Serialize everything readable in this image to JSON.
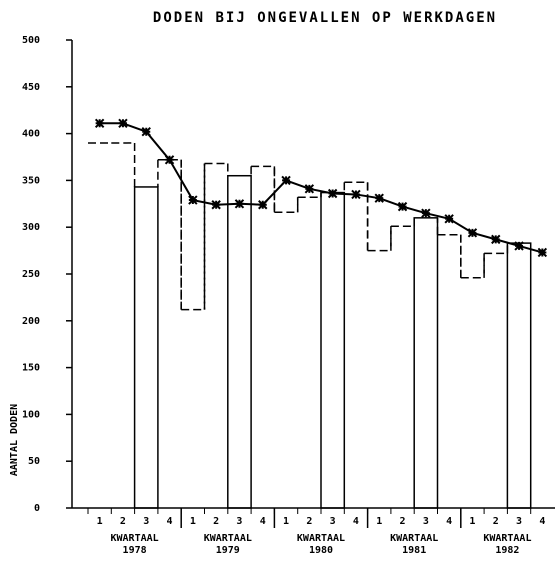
{
  "chart_data": {
    "type": "bar",
    "title": "DODEN BIJ ONGEVALLEN OP WERKDAGEN",
    "y_label": "AANTAL DODEN",
    "categories": [
      "1",
      "2",
      "3",
      "4",
      "1",
      "2",
      "3",
      "4",
      "1",
      "2",
      "3",
      "4",
      "1",
      "2",
      "3",
      "4",
      "1",
      "2",
      "3",
      "4"
    ],
    "groups": [
      {
        "label": "KWARTAAL",
        "year": "1978"
      },
      {
        "label": "KWARTAAL",
        "year": "1979"
      },
      {
        "label": "KWARTAAL",
        "year": "1980"
      },
      {
        "label": "KWARTAAL",
        "year": "1981"
      },
      {
        "label": "KWARTAAL",
        "year": "1982"
      }
    ],
    "series": [
      {
        "style": "line",
        "color": "#000",
        "values": [
          411,
          411,
          402,
          372,
          329,
          324,
          325,
          324,
          350,
          341,
          336,
          335,
          331,
          322,
          315,
          309,
          294,
          287,
          280,
          273
        ]
      },
      {
        "style": "dashed-step",
        "color": "#000",
        "values": [
          390,
          390,
          null,
          372,
          212,
          368,
          null,
          365,
          316,
          332,
          null,
          348,
          275,
          301,
          null,
          292,
          246,
          272,
          null,
          null
        ]
      },
      {
        "style": "bar",
        "color": "#000",
        "values": [
          null,
          null,
          343,
          null,
          null,
          null,
          355,
          null,
          null,
          null,
          337,
          null,
          null,
          null,
          310,
          null,
          null,
          null,
          283,
          null
        ]
      }
    ],
    "ylim": [
      0,
      500
    ],
    "yticks": [
      0,
      50,
      100,
      150,
      200,
      250,
      300,
      350,
      400,
      450,
      500
    ],
    "grid": false
  }
}
